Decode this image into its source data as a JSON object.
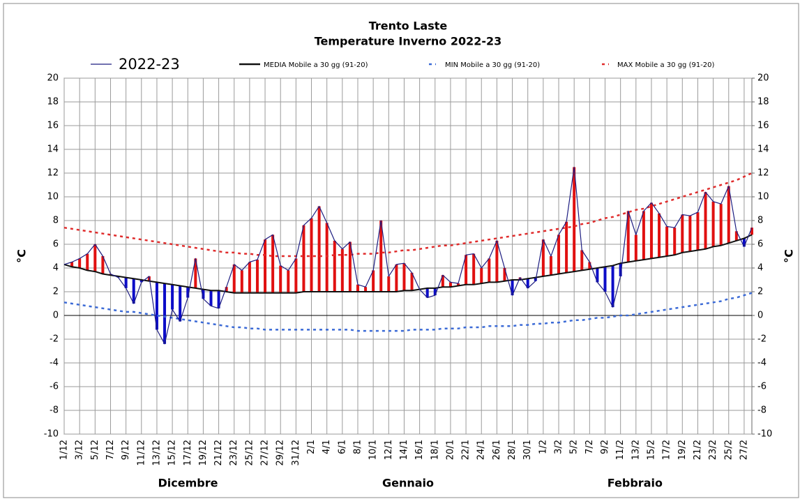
{
  "chart_data": {
    "type": "line",
    "title": "Trento Laste",
    "subtitle": "Temperature Inverno 2022-23",
    "y_label": "°C",
    "y2_label": "°C",
    "months": [
      "Dicembre",
      "Gennaio",
      "Febbraio"
    ],
    "categories": [
      "1/12",
      null,
      "3/12",
      null,
      "5/12",
      null,
      "7/12",
      null,
      "9/12",
      null,
      "11/12",
      null,
      "13/12",
      null,
      "15/12",
      null,
      "17/12",
      null,
      "19/12",
      null,
      "21/12",
      null,
      "23/12",
      null,
      "25/12",
      null,
      "27/12",
      null,
      "29/12",
      null,
      "31/12",
      null,
      "2/1",
      null,
      "4/1",
      null,
      "6/1",
      null,
      "8/1",
      null,
      "10/1",
      null,
      "12/1",
      null,
      "14/1",
      null,
      "16/1",
      null,
      "18/1",
      null,
      "20/1",
      null,
      "22/1",
      null,
      "24/1",
      null,
      "26/1",
      null,
      "28/1",
      null,
      "30/1",
      null,
      "1/2",
      null,
      "3/2",
      null,
      "5/2",
      null,
      "7/2",
      null,
      "9/2",
      null,
      "11/2",
      null,
      "13/2",
      null,
      "15/2",
      null,
      "17/2",
      null,
      "19/2",
      null,
      "21/2",
      null,
      "23/2",
      null,
      "25/2",
      null,
      "27/2",
      null
    ],
    "series": [
      {
        "name": "2022-23",
        "color": "#1c1c80",
        "values": [
          4.3,
          4.5,
          4.8,
          5.2,
          6.0,
          5.0,
          3.5,
          3.2,
          2.3,
          1.0,
          2.8,
          3.3,
          -1.2,
          -2.4,
          0.5,
          -0.5,
          1.5,
          4.8,
          1.4,
          0.8,
          0.6,
          2.4,
          4.3,
          3.8,
          4.5,
          4.7,
          6.4,
          6.8,
          4.2,
          3.8,
          4.8,
          7.6,
          8.2,
          9.2,
          7.8,
          6.3,
          5.6,
          6.2,
          2.6,
          2.4,
          3.8,
          8.0,
          3.3,
          4.3,
          4.4,
          3.6,
          2.2,
          1.5,
          1.7,
          3.4,
          2.8,
          2.7,
          5.1,
          5.2,
          4.0,
          4.8,
          6.3,
          4.0,
          1.7,
          3.2,
          2.3,
          2.9,
          6.4,
          5.0,
          6.8,
          7.9,
          12.5,
          5.5,
          4.5,
          2.8,
          2.0,
          0.7,
          3.3,
          8.8,
          6.8,
          8.8,
          9.5,
          8.6,
          7.5,
          7.4,
          8.5,
          8.4,
          8.7,
          10.4,
          9.6,
          9.4,
          10.9,
          7.1,
          5.8,
          7.4
        ]
      },
      {
        "name": "MEDIA Mobile a 30 gg (91-20)",
        "color": "#111111",
        "values": [
          4.3,
          4.1,
          4.0,
          3.8,
          3.7,
          3.5,
          3.4,
          3.3,
          3.2,
          3.1,
          3.0,
          2.9,
          2.8,
          2.7,
          2.6,
          2.5,
          2.4,
          2.3,
          2.2,
          2.1,
          2.1,
          2.0,
          1.9,
          1.9,
          1.9,
          1.9,
          1.9,
          1.9,
          1.9,
          1.9,
          1.9,
          2.0,
          2.0,
          2.0,
          2.0,
          2.0,
          2.0,
          2.0,
          2.0,
          2.0,
          2.0,
          2.0,
          2.0,
          2.0,
          2.1,
          2.1,
          2.2,
          2.3,
          2.3,
          2.4,
          2.4,
          2.5,
          2.6,
          2.6,
          2.7,
          2.8,
          2.8,
          2.9,
          3.0,
          3.0,
          3.1,
          3.2,
          3.3,
          3.4,
          3.5,
          3.6,
          3.7,
          3.8,
          3.9,
          4.0,
          4.1,
          4.2,
          4.4,
          4.5,
          4.6,
          4.7,
          4.8,
          4.9,
          5.0,
          5.1,
          5.3,
          5.4,
          5.5,
          5.6,
          5.8,
          5.9,
          6.1,
          6.3,
          6.5,
          6.8
        ]
      },
      {
        "name": "MIN Mobile a 30 gg (91-20)",
        "color": "#3b6ad6",
        "dashed": true,
        "values": [
          1.1,
          1.0,
          0.9,
          0.8,
          0.7,
          0.6,
          0.5,
          0.4,
          0.3,
          0.3,
          0.2,
          0.1,
          0.0,
          -0.1,
          -0.2,
          -0.3,
          -0.4,
          -0.5,
          -0.6,
          -0.7,
          -0.8,
          -0.9,
          -1.0,
          -1.0,
          -1.1,
          -1.1,
          -1.2,
          -1.2,
          -1.2,
          -1.2,
          -1.2,
          -1.2,
          -1.2,
          -1.2,
          -1.2,
          -1.2,
          -1.2,
          -1.2,
          -1.3,
          -1.3,
          -1.3,
          -1.3,
          -1.3,
          -1.3,
          -1.3,
          -1.2,
          -1.2,
          -1.2,
          -1.2,
          -1.1,
          -1.1,
          -1.1,
          -1.0,
          -1.0,
          -1.0,
          -0.9,
          -0.9,
          -0.9,
          -0.9,
          -0.8,
          -0.8,
          -0.7,
          -0.7,
          -0.6,
          -0.6,
          -0.5,
          -0.4,
          -0.4,
          -0.3,
          -0.2,
          -0.2,
          -0.1,
          0.0,
          0.0,
          0.1,
          0.2,
          0.3,
          0.4,
          0.5,
          0.6,
          0.7,
          0.8,
          0.9,
          1.0,
          1.1,
          1.2,
          1.4,
          1.5,
          1.7,
          1.9
        ]
      },
      {
        "name": "MAX Mobile a 30 gg (91-20)",
        "color": "#e02b2b",
        "dashed": true,
        "values": [
          7.4,
          7.3,
          7.2,
          7.1,
          7.0,
          6.9,
          6.8,
          6.7,
          6.6,
          6.5,
          6.4,
          6.3,
          6.2,
          6.1,
          6.0,
          5.9,
          5.8,
          5.7,
          5.6,
          5.5,
          5.4,
          5.3,
          5.3,
          5.2,
          5.2,
          5.1,
          5.1,
          5.0,
          5.0,
          5.0,
          5.0,
          5.0,
          5.0,
          5.0,
          5.0,
          5.1,
          5.1,
          5.1,
          5.2,
          5.2,
          5.2,
          5.3,
          5.3,
          5.4,
          5.5,
          5.5,
          5.6,
          5.7,
          5.8,
          5.9,
          5.9,
          6.0,
          6.1,
          6.2,
          6.3,
          6.4,
          6.5,
          6.6,
          6.7,
          6.8,
          6.9,
          7.0,
          7.1,
          7.2,
          7.3,
          7.4,
          7.5,
          7.7,
          7.8,
          8.0,
          8.2,
          8.3,
          8.5,
          8.7,
          8.9,
          9.0,
          9.2,
          9.4,
          9.6,
          9.8,
          10.0,
          10.2,
          10.4,
          10.6,
          10.8,
          11.0,
          11.2,
          11.4,
          11.7,
          12.0
        ]
      }
    ],
    "above_color": "#e01010",
    "below_color": "#0c0cc8",
    "ylim": [
      -10,
      20
    ],
    "yticks": [
      -10,
      -8,
      -6,
      -4,
      -2,
      0,
      2,
      4,
      6,
      8,
      10,
      12,
      14,
      16,
      18,
      20
    ],
    "y2lim": [
      -10,
      20
    ],
    "y2ticks": [
      -10,
      -8,
      -6,
      -4,
      -2,
      0,
      2,
      4,
      6,
      8,
      10,
      12,
      14,
      16,
      18,
      20
    ],
    "grid": true
  }
}
